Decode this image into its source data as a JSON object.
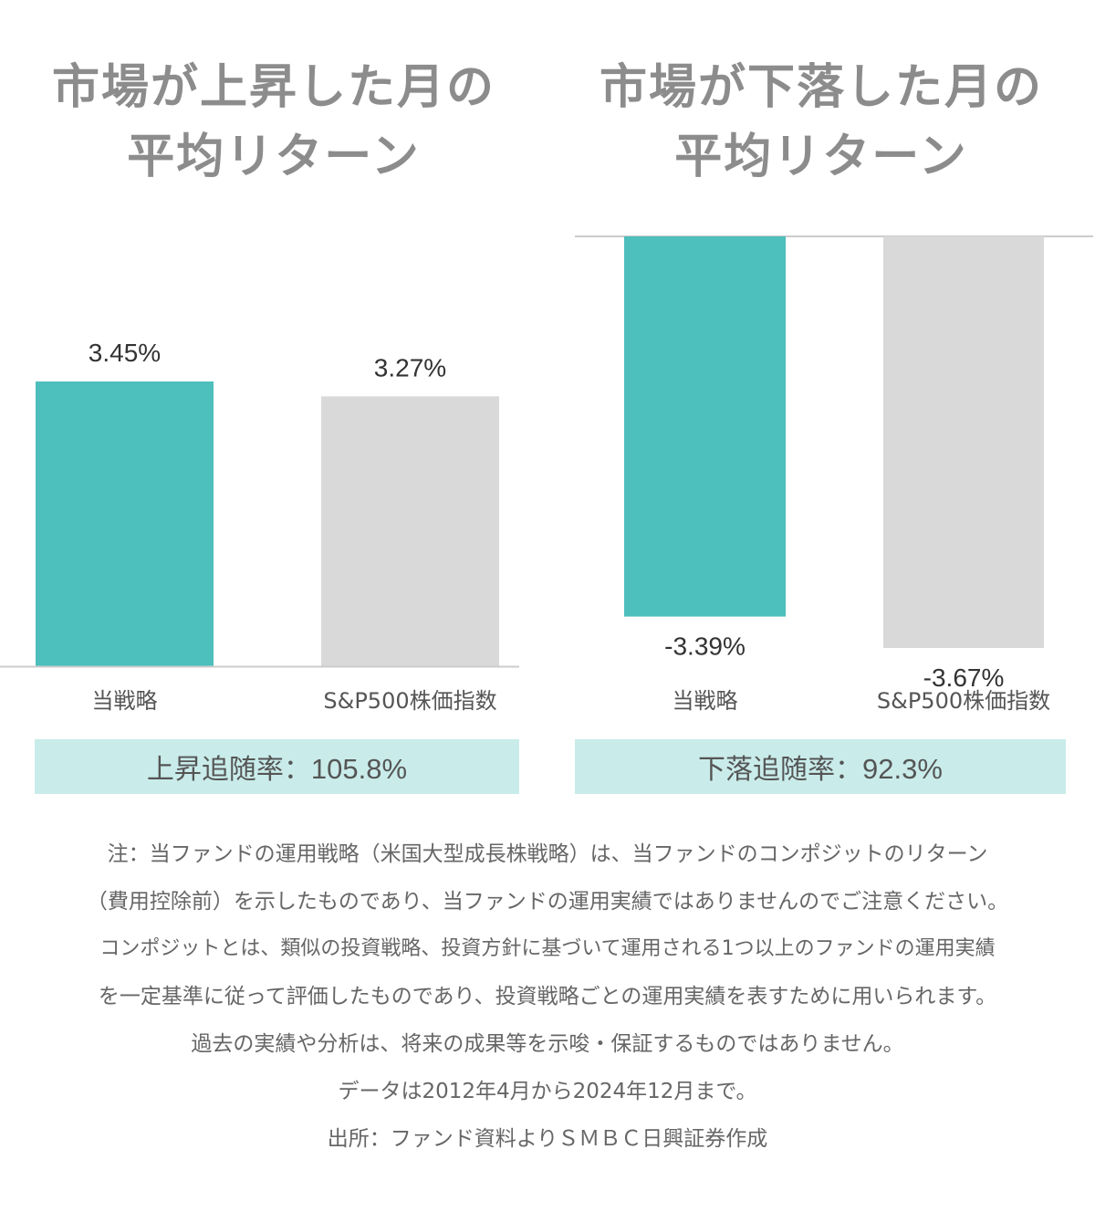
{
  "panels": [
    {
      "title_line1": "市場が上昇した月の",
      "title_line2": "平均リターン",
      "ratio_label": "上昇追随率：",
      "ratio_value": "105.8%"
    },
    {
      "title_line1": "市場が下落した月の",
      "title_line2": "平均リターン",
      "ratio_label": "下落追随率：",
      "ratio_value": "92.3%"
    }
  ],
  "colors": {
    "strategy": "#4dbfbd",
    "index": "#d9d9d9",
    "ratio_bg": "#c9ecea",
    "title": "#8c8c8c"
  },
  "chart_data": [
    {
      "type": "bar",
      "title": "市場が上昇した月の 平均リターン",
      "categories": [
        "当戦略",
        "S&P500株価指数"
      ],
      "values": [
        3.45,
        3.27
      ],
      "value_labels": [
        "3.45%",
        "3.27%"
      ],
      "unit": "%",
      "ylim": [
        0,
        3.45
      ],
      "grid": false
    },
    {
      "type": "bar",
      "title": "市場が下落した月の 平均リターン",
      "categories": [
        "当戦略",
        "S&P500株価指数"
      ],
      "values": [
        -3.39,
        -3.67
      ],
      "value_labels": [
        "-3.39%",
        "-3.67%"
      ],
      "unit": "%",
      "ylim": [
        -3.67,
        0
      ],
      "grid": false
    }
  ],
  "notes": [
    "注：当ファンドの運用戦略（米国大型成長株戦略）は、当ファンドのコンポジットのリターン",
    "（費用控除前）を示したものであり、当ファンドの運用実績ではありませんのでご注意ください。",
    "コンポジットとは、類似の投資戦略、投資方針に基づいて運用される1つ以上のファンドの運用実績",
    "を一定基準に従って評価したものであり、投資戦略ごとの運用実績を表すために用いられます。",
    "過去の実績や分析は、将来の成果等を示唆・保証するものではありません。",
    "データは2012年4月から2024年12月まで。",
    "出所：ファンド資料よりＳＭＢＣ日興証券作成"
  ]
}
